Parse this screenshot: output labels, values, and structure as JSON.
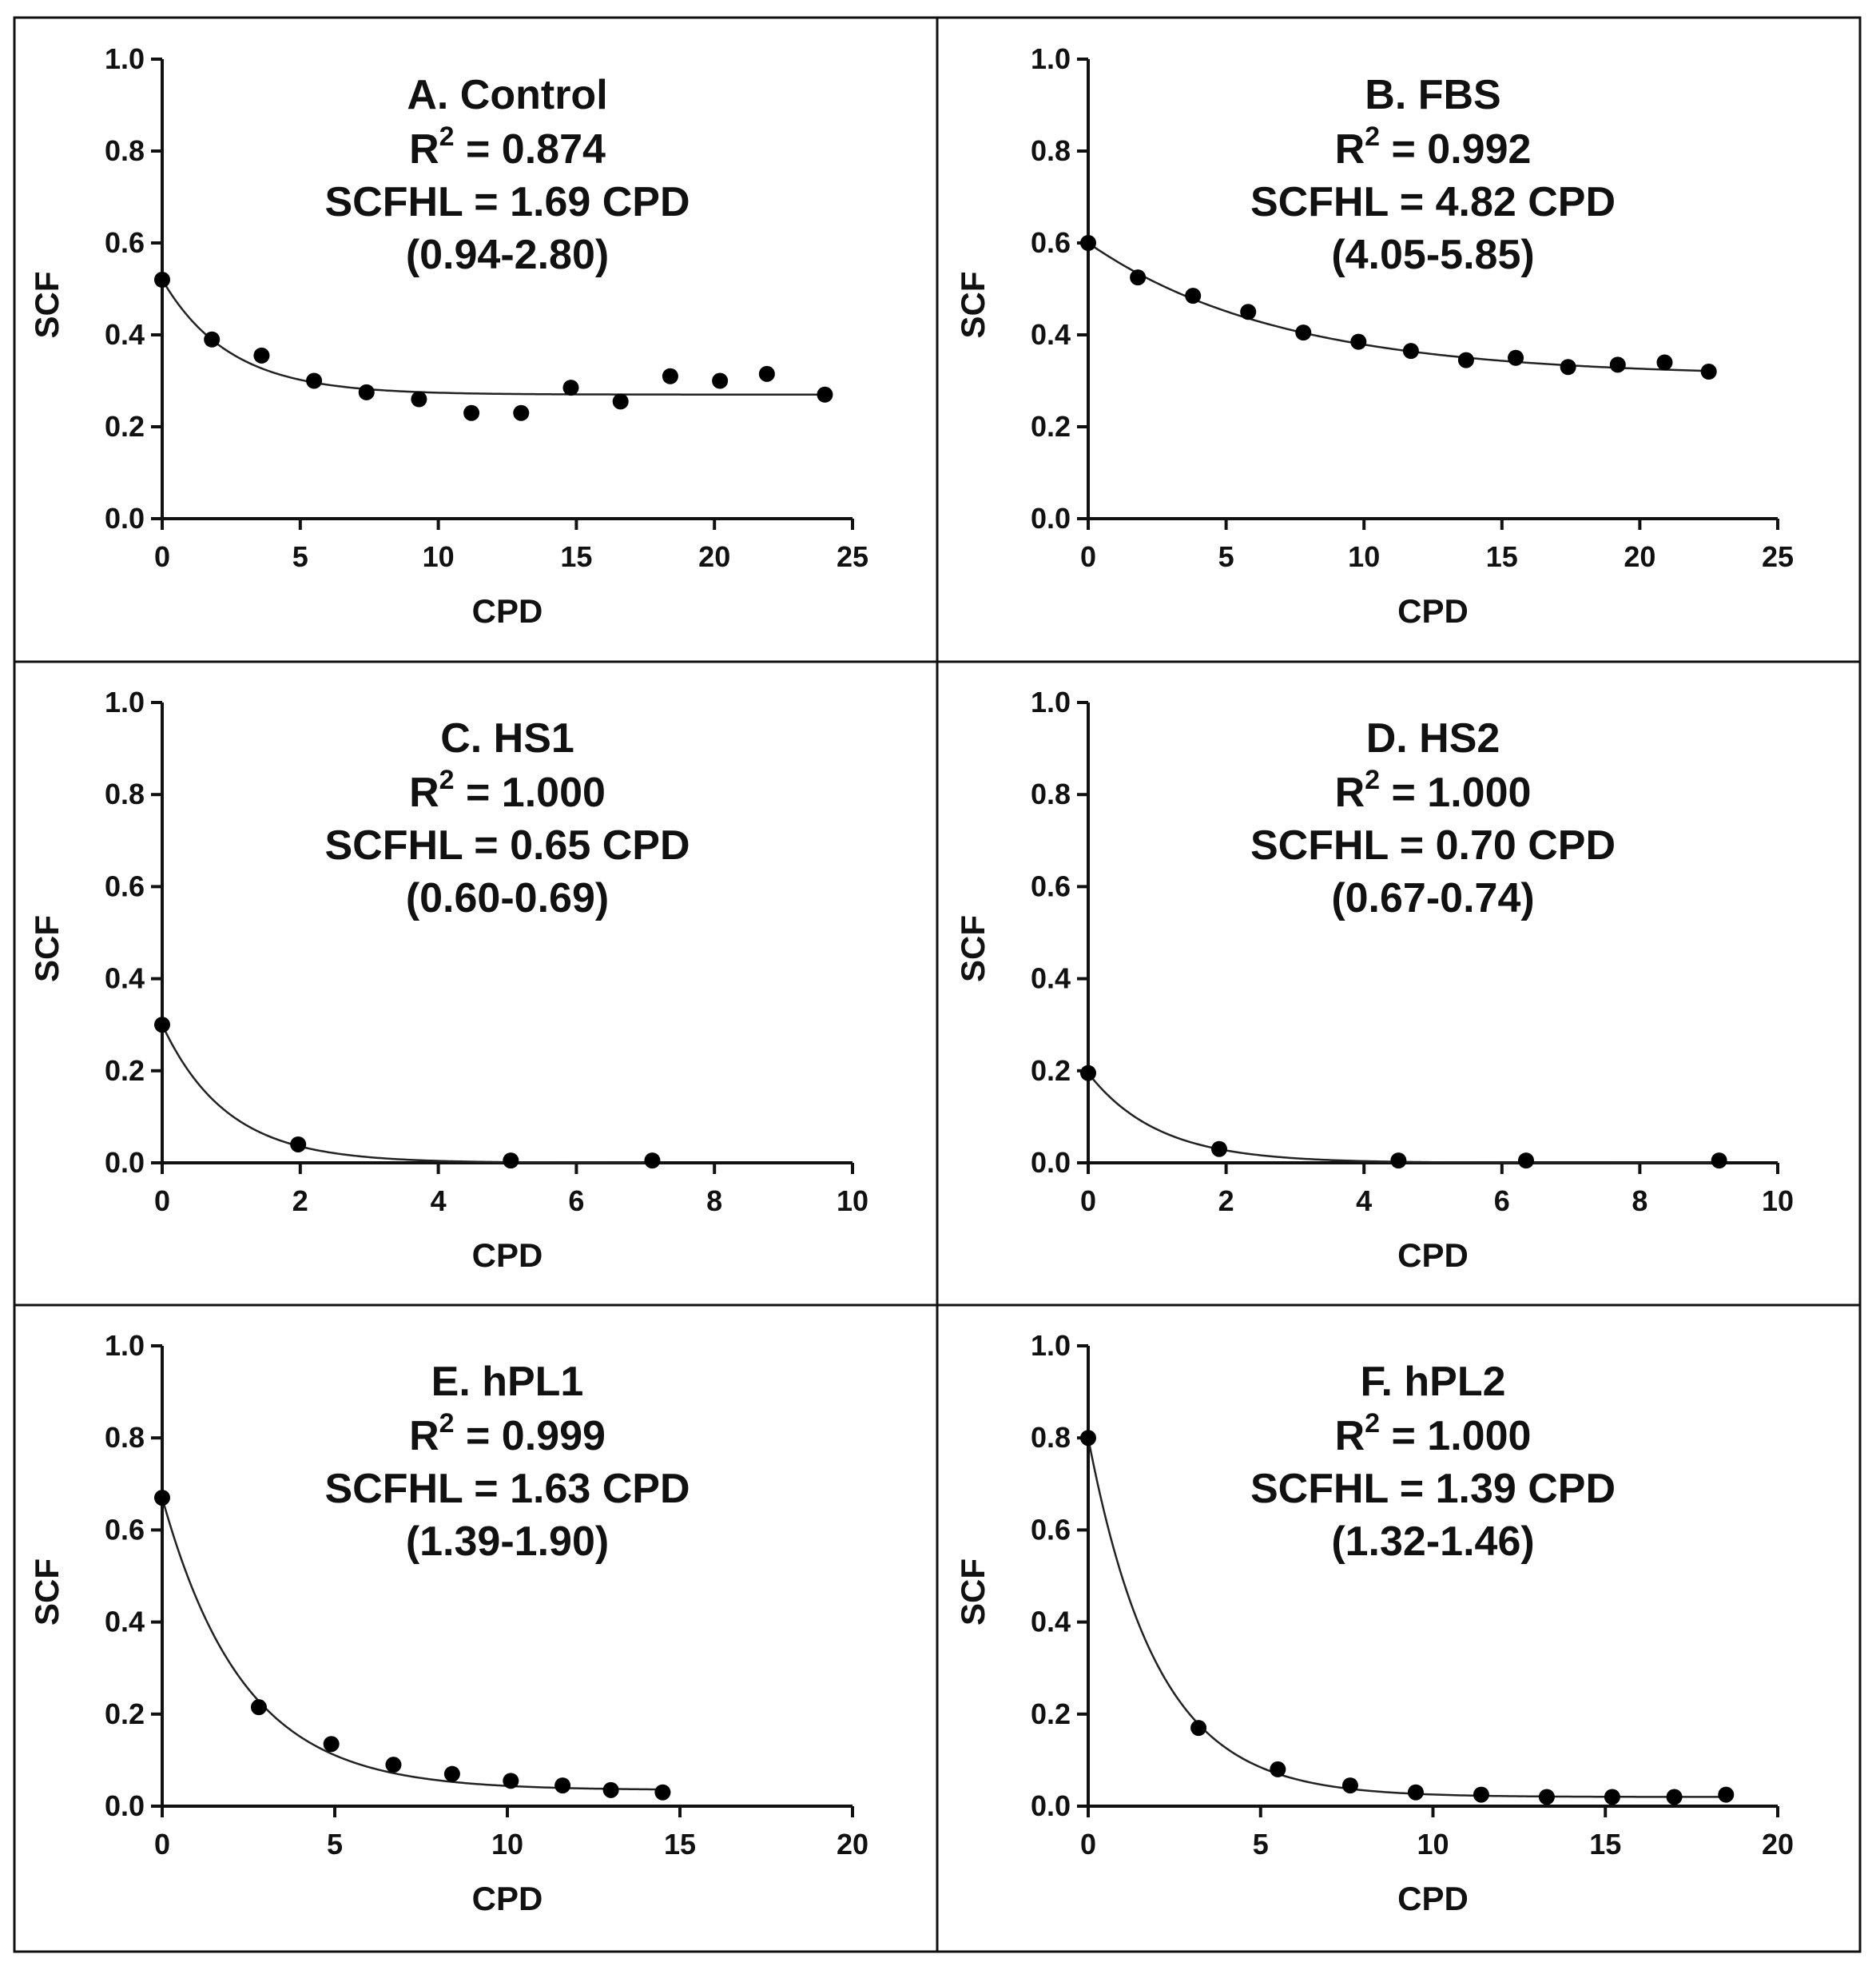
{
  "figure": {
    "panel_order": [
      "A",
      "B",
      "C",
      "D",
      "E",
      "F"
    ]
  },
  "chart_data": [
    {
      "type": "scatter",
      "panel": "A",
      "title": "A. Control",
      "r2_label": "R",
      "r2_sup": "2",
      "r2_value": " = 0.874",
      "scfhl": "SCFHL = 1.69 CPD",
      "ci": "(0.94-2.80)",
      "xlabel": "CPD",
      "ylabel": "SCF",
      "xlim": [
        0,
        25
      ],
      "ylim": [
        0,
        1.0
      ],
      "xticks": [
        0,
        5,
        10,
        15,
        20,
        25
      ],
      "xtick_labels": [
        "0",
        "5",
        "10",
        "15",
        "20",
        "25"
      ],
      "yticks": [
        0,
        0.2,
        0.4,
        0.6,
        0.8,
        1.0
      ],
      "ytick_labels": [
        "0.0",
        "0.2",
        "0.4",
        "0.6",
        "0.8",
        "1.0"
      ],
      "x": [
        0,
        1.8,
        3.6,
        5.5,
        7.4,
        9.3,
        11.2,
        13.0,
        14.8,
        16.6,
        18.4,
        20.2,
        21.9,
        24.0
      ],
      "y": [
        0.52,
        0.39,
        0.355,
        0.3,
        0.275,
        0.26,
        0.23,
        0.23,
        0.285,
        0.255,
        0.31,
        0.3,
        0.315,
        0.27
      ],
      "fit": {
        "model": "one-phase-decay",
        "y0": 0.52,
        "plateau": 0.27,
        "half_life": 1.69
      }
    },
    {
      "type": "scatter",
      "panel": "B",
      "title": "B. FBS",
      "r2_label": "R",
      "r2_sup": "2",
      "r2_value": " = 0.992",
      "scfhl": "SCFHL = 4.82 CPD",
      "ci": "(4.05-5.85)",
      "xlabel": "CPD",
      "ylabel": "SCF",
      "xlim": [
        0,
        25
      ],
      "ylim": [
        0,
        1.0
      ],
      "xticks": [
        0,
        5,
        10,
        15,
        20,
        25
      ],
      "xtick_labels": [
        "0",
        "5",
        "10",
        "15",
        "20",
        "25"
      ],
      "yticks": [
        0,
        0.2,
        0.4,
        0.6,
        0.8,
        1.0
      ],
      "ytick_labels": [
        "0.0",
        "0.2",
        "0.4",
        "0.6",
        "0.8",
        "1.0"
      ],
      "x": [
        0,
        1.8,
        3.8,
        5.8,
        7.8,
        9.8,
        11.7,
        13.7,
        15.5,
        17.4,
        19.2,
        20.9,
        22.5
      ],
      "y": [
        0.6,
        0.525,
        0.485,
        0.45,
        0.405,
        0.385,
        0.365,
        0.345,
        0.35,
        0.33,
        0.335,
        0.34,
        0.32
      ],
      "fit": {
        "model": "one-phase-decay",
        "y0": 0.6,
        "plateau": 0.31,
        "half_life": 4.82
      }
    },
    {
      "type": "scatter",
      "panel": "C",
      "title": "C. HS1",
      "r2_label": "R",
      "r2_sup": "2",
      "r2_value": " = 1.000",
      "scfhl": "SCFHL = 0.65 CPD",
      "ci": "(0.60-0.69)",
      "xlabel": "CPD",
      "ylabel": "SCF",
      "xlim": [
        0,
        10
      ],
      "ylim": [
        0,
        1.0
      ],
      "xticks": [
        0,
        2,
        4,
        6,
        8,
        10
      ],
      "xtick_labels": [
        "0",
        "2",
        "4",
        "6",
        "8",
        "10"
      ],
      "yticks": [
        0,
        0.2,
        0.4,
        0.6,
        0.8,
        1.0
      ],
      "ytick_labels": [
        "0.0",
        "0.2",
        "0.4",
        "0.6",
        "0.8",
        "1.0"
      ],
      "x": [
        0,
        1.97,
        5.05,
        7.1
      ],
      "y": [
        0.3,
        0.04,
        0.005,
        0.005
      ],
      "fit": {
        "model": "one-phase-decay",
        "y0": 0.3,
        "plateau": 0.0,
        "half_life": 0.65
      }
    },
    {
      "type": "scatter",
      "panel": "D",
      "title": "D. HS2",
      "r2_label": "R",
      "r2_sup": "2",
      "r2_value": " = 1.000",
      "scfhl": "SCFHL = 0.70 CPD",
      "ci": "(0.67-0.74)",
      "xlabel": "CPD",
      "ylabel": "SCF",
      "xlim": [
        0,
        10
      ],
      "ylim": [
        0,
        1.0
      ],
      "xticks": [
        0,
        2,
        4,
        6,
        8,
        10
      ],
      "xtick_labels": [
        "0",
        "2",
        "4",
        "6",
        "8",
        "10"
      ],
      "yticks": [
        0,
        0.2,
        0.4,
        0.6,
        0.8,
        1.0
      ],
      "ytick_labels": [
        "0.0",
        "0.2",
        "0.4",
        "0.6",
        "0.8",
        "1.0"
      ],
      "x": [
        0,
        1.9,
        4.5,
        6.35,
        9.15
      ],
      "y": [
        0.195,
        0.03,
        0.005,
        0.005,
        0.005
      ],
      "fit": {
        "model": "one-phase-decay",
        "y0": 0.195,
        "plateau": 0.0,
        "half_life": 0.7
      }
    },
    {
      "type": "scatter",
      "panel": "E",
      "title": "E. hPL1",
      "r2_label": "R",
      "r2_sup": "2",
      "r2_value": " = 0.999",
      "scfhl": "SCFHL = 1.63 CPD",
      "ci": "(1.39-1.90)",
      "xlabel": "CPD",
      "ylabel": "SCF",
      "xlim": [
        0,
        20
      ],
      "ylim": [
        0,
        1.0
      ],
      "xticks": [
        0,
        5,
        10,
        15,
        20
      ],
      "xtick_labels": [
        "0",
        "5",
        "10",
        "15",
        "20"
      ],
      "yticks": [
        0,
        0.2,
        0.4,
        0.6,
        0.8,
        1.0
      ],
      "ytick_labels": [
        "0.0",
        "0.2",
        "0.4",
        "0.6",
        "0.8",
        "1.0"
      ],
      "x": [
        0,
        2.8,
        4.9,
        6.7,
        8.4,
        10.1,
        11.6,
        13.0,
        14.5
      ],
      "y": [
        0.67,
        0.215,
        0.135,
        0.09,
        0.07,
        0.055,
        0.045,
        0.035,
        0.03
      ],
      "fit": {
        "model": "one-phase-decay",
        "y0": 0.67,
        "plateau": 0.035,
        "half_life": 1.63
      }
    },
    {
      "type": "scatter",
      "panel": "F",
      "title": "F. hPL2",
      "r2_label": "R",
      "r2_sup": "2",
      "r2_value": " = 1.000",
      "scfhl": "SCFHL = 1.39 CPD",
      "ci": "(1.32-1.46)",
      "xlabel": "CPD",
      "ylabel": "SCF",
      "xlim": [
        0,
        20
      ],
      "ylim": [
        0,
        1.0
      ],
      "xticks": [
        0,
        5,
        10,
        15,
        20
      ],
      "xtick_labels": [
        "0",
        "5",
        "10",
        "15",
        "20"
      ],
      "yticks": [
        0,
        0.2,
        0.4,
        0.6,
        0.8,
        1.0
      ],
      "ytick_labels": [
        "0.0",
        "0.2",
        "0.4",
        "0.6",
        "0.8",
        "1.0"
      ],
      "x": [
        0,
        3.2,
        5.5,
        7.6,
        9.5,
        11.4,
        13.3,
        15.2,
        17.0,
        18.5
      ],
      "y": [
        0.8,
        0.17,
        0.08,
        0.045,
        0.03,
        0.025,
        0.02,
        0.02,
        0.02,
        0.025
      ],
      "fit": {
        "model": "one-phase-decay",
        "y0": 0.8,
        "plateau": 0.02,
        "half_life": 1.39
      }
    }
  ]
}
